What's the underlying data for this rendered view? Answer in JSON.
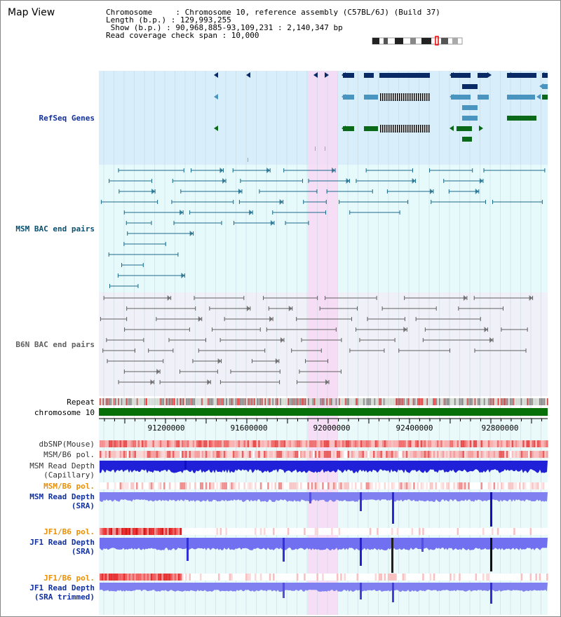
{
  "header": {
    "title": "Map View",
    "info_lines": [
      "Chromosome     : Chromosome 10, reference assembly (C57BL/6J) (Build 37)",
      "Length (b.p.) : 129,993,255",
      " Show (b.p.) : 90,968,885-93,109,231 : 2,140,347 bp",
      "Read coverage check span : 10,000"
    ]
  },
  "tracks": {
    "refseq": "RefSeq Genes",
    "msm_bac": "MSM BAC end pairs",
    "b6n_bac": "B6N BAC end pairs",
    "repeat": "Repeat",
    "chromosome": "chromosome 10",
    "dbsnp": "dbSNP(Mouse)",
    "msm_pol1": "MSM/B6 pol.",
    "msm_depth_cap_1": "MSM Read Depth",
    "msm_depth_cap_2": "(Capillary)",
    "msm_pol2": "MSM/B6 pol.",
    "msm_depth_sra_1": "MSM Read Depth",
    "msm_depth_sra_2": "(SRA)",
    "jf1_pol1": "JF1/B6 pol.",
    "jf1_depth_sra_1": "JF1 Read Depth",
    "jf1_depth_sra_2": "(SRA)",
    "jf1_pol2": "JF1/B6 pol.",
    "jf1_depth_trim_1": "JF1 Read Depth",
    "jf1_depth_trim_2": "(SRA trimmed)"
  },
  "axis": {
    "ticks": [
      "91200000",
      "91600000",
      "92000000",
      "92400000",
      "92800000"
    ]
  },
  "colors": {
    "refseq_bg": "#d8eefa",
    "msm_bg": "#e6fafc",
    "b6n_bg": "#f0f0f8",
    "highlight": "#f8d8f4",
    "dark_gene": "#0a2a66",
    "mid_gene": "#4a94c0",
    "green_gene": "#0a6a1a",
    "teal": "#1a6a8a",
    "gray_pair": "#606060",
    "chrom": "#087008",
    "label_blue": "#1030a0",
    "label_teal": "#0a5070",
    "label_gray": "#606060",
    "label_orange": "#e8900a"
  }
}
